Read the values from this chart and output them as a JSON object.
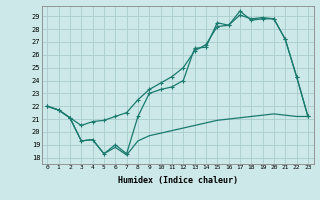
{
  "xlabel": "Humidex (Indice chaleur)",
  "bg_color": "#cce8e8",
  "grid_color": "#aacccc",
  "line_color": "#1a7a6e",
  "xlim": [
    -0.5,
    23.5
  ],
  "ylim": [
    17.5,
    29.8
  ],
  "yticks": [
    18,
    19,
    20,
    21,
    22,
    23,
    24,
    25,
    26,
    27,
    28,
    29
  ],
  "xticks": [
    0,
    1,
    2,
    3,
    4,
    5,
    6,
    7,
    8,
    9,
    10,
    11,
    12,
    13,
    14,
    15,
    16,
    17,
    18,
    19,
    20,
    21,
    22,
    23
  ],
  "line1_x": [
    0,
    1,
    2,
    3,
    4,
    5,
    6,
    7,
    8,
    9,
    10,
    11,
    12,
    13,
    14,
    15,
    16,
    17,
    18,
    19,
    20,
    21,
    22,
    23
  ],
  "line1_y": [
    22.0,
    21.7,
    21.1,
    19.3,
    19.4,
    18.3,
    19.0,
    18.3,
    21.2,
    23.0,
    23.3,
    23.5,
    24.0,
    26.5,
    26.6,
    28.5,
    28.3,
    29.4,
    28.7,
    28.8,
    28.8,
    27.2,
    24.3,
    21.2
  ],
  "line2_x": [
    0,
    1,
    2,
    3,
    4,
    5,
    6,
    7,
    8,
    9,
    10,
    11,
    12,
    13,
    14,
    15,
    16,
    17,
    18,
    19,
    20,
    21,
    22,
    23
  ],
  "line2_y": [
    22.0,
    21.7,
    21.1,
    20.5,
    20.8,
    20.9,
    21.2,
    21.5,
    22.5,
    23.3,
    23.8,
    24.3,
    25.0,
    26.3,
    26.8,
    28.2,
    28.3,
    29.1,
    28.8,
    28.9,
    28.8,
    27.2,
    24.3,
    21.2
  ],
  "line3_x": [
    0,
    1,
    2,
    3,
    4,
    5,
    6,
    7,
    8,
    9,
    10,
    11,
    12,
    13,
    14,
    15,
    16,
    17,
    18,
    19,
    20,
    21,
    22,
    23
  ],
  "line3_y": [
    22.0,
    21.7,
    21.1,
    19.3,
    19.4,
    18.3,
    18.8,
    18.2,
    19.3,
    19.7,
    19.9,
    20.1,
    20.3,
    20.5,
    20.7,
    20.9,
    21.0,
    21.1,
    21.2,
    21.3,
    21.4,
    21.3,
    21.2,
    21.2
  ]
}
